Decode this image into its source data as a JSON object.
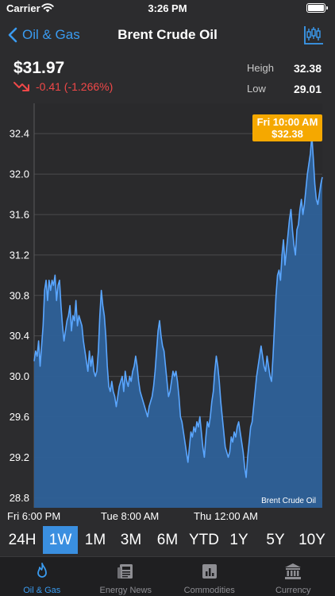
{
  "status_bar": {
    "carrier": "Carrier",
    "time": "3:26 PM"
  },
  "nav": {
    "back_label": "Oil & Gas",
    "title": "Brent Crude Oil"
  },
  "price": {
    "value": "$31.97",
    "change": "-0.41 (-1.266%)",
    "high_label": "Heigh",
    "high_value": "32.38",
    "low_label": "Low",
    "low_value": "29.01"
  },
  "colors": {
    "accent": "#3a9bf0",
    "negative": "#f04848",
    "tooltip": "#f5a800",
    "area_fill": "#2e6199"
  },
  "chart_data": {
    "type": "area",
    "series_label": "Brent Crude Oil",
    "y_ticks": [
      "32.4",
      "32.0",
      "31.6",
      "31.2",
      "30.8",
      "30.4",
      "30.0",
      "29.6",
      "29.2",
      "28.8"
    ],
    "ylim": [
      28.7,
      32.7
    ],
    "x_ticks": [
      "Fri 6:00 PM",
      "Tue 8:00 AM",
      "Thu 12:00 AM"
    ],
    "grid": true,
    "tooltip": {
      "time": "Fri 10:00 AM",
      "value": "$32.38"
    },
    "values": [
      30.15,
      30.25,
      30.2,
      30.35,
      30.1,
      30.3,
      30.5,
      30.85,
      30.95,
      30.75,
      30.95,
      30.85,
      30.95,
      30.9,
      31.0,
      30.75,
      30.9,
      30.95,
      30.7,
      30.5,
      30.35,
      30.45,
      30.55,
      30.6,
      30.7,
      30.45,
      30.6,
      30.55,
      30.75,
      30.5,
      30.6,
      30.55,
      30.5,
      30.35,
      30.25,
      30.15,
      30.05,
      30.25,
      30.1,
      30.2,
      30.05,
      30.0,
      30.05,
      30.25,
      30.6,
      30.85,
      30.7,
      30.6,
      30.4,
      30.1,
      29.9,
      29.85,
      29.95,
      29.85,
      29.8,
      29.7,
      29.8,
      29.9,
      29.95,
      30.0,
      29.85,
      30.05,
      29.95,
      29.9,
      30.0,
      29.95,
      30.05,
      30.1,
      30.2,
      30.1,
      29.95,
      29.85,
      29.8,
      29.75,
      29.7,
      29.65,
      29.6,
      29.7,
      29.75,
      29.8,
      29.9,
      30.05,
      30.25,
      30.45,
      30.55,
      30.4,
      30.3,
      30.25,
      30.1,
      29.95,
      29.8,
      29.85,
      29.95,
      30.05,
      30.0,
      30.05,
      29.95,
      29.8,
      29.6,
      29.55,
      29.45,
      29.35,
      29.25,
      29.15,
      29.3,
      29.45,
      29.4,
      29.5,
      29.45,
      29.55,
      29.5,
      29.6,
      29.45,
      29.3,
      29.2,
      29.4,
      29.55,
      29.5,
      29.6,
      29.75,
      29.85,
      30.05,
      30.2,
      30.1,
      29.95,
      29.75,
      29.6,
      29.45,
      29.3,
      29.25,
      29.2,
      29.25,
      29.4,
      29.35,
      29.45,
      29.4,
      29.5,
      29.55,
      29.45,
      29.35,
      29.25,
      29.1,
      29.0,
      29.2,
      29.35,
      29.5,
      29.55,
      29.7,
      29.85,
      30.0,
      30.1,
      30.2,
      30.3,
      30.2,
      30.1,
      30.05,
      30.2,
      30.1,
      30.0,
      29.95,
      30.2,
      30.5,
      30.8,
      31.0,
      31.05,
      30.95,
      31.2,
      31.35,
      31.1,
      31.25,
      31.4,
      31.55,
      31.65,
      31.45,
      31.3,
      31.2,
      31.45,
      31.5,
      31.65,
      31.75,
      31.6,
      31.7,
      31.85,
      32.0,
      32.1,
      32.2,
      32.38,
      32.15,
      31.9,
      31.75,
      31.7,
      31.8,
      31.9,
      31.97
    ]
  },
  "ranges": [
    "24H",
    "1W",
    "1M",
    "3M",
    "6M",
    "YTD",
    "1Y",
    "5Y",
    "10Y"
  ],
  "active_range": "1W",
  "tabs": [
    {
      "label": "Oil & Gas",
      "icon": "flame-icon",
      "active": true
    },
    {
      "label": "Energy News",
      "icon": "newspaper-icon",
      "active": false
    },
    {
      "label": "Commodities",
      "icon": "bar-chart-icon",
      "active": false
    },
    {
      "label": "Currency",
      "icon": "bank-icon",
      "active": false
    }
  ]
}
